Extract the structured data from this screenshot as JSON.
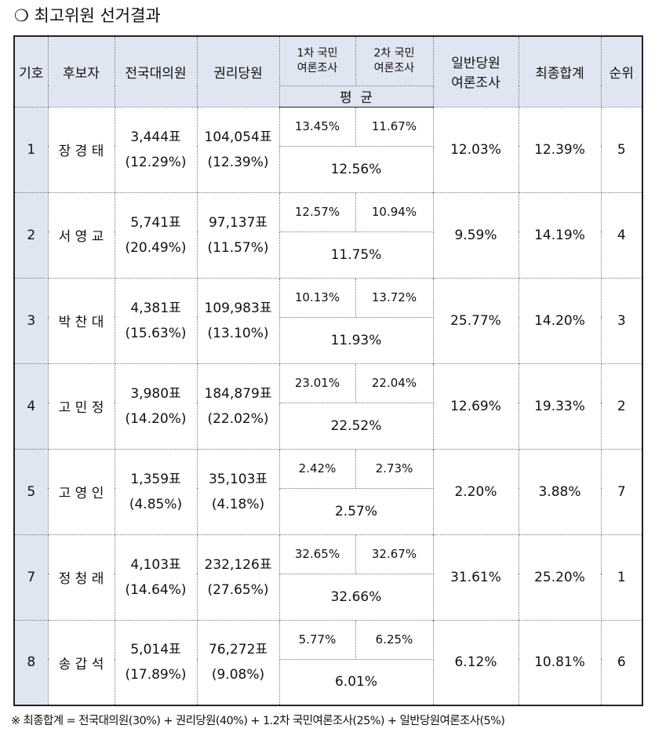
{
  "title": "❍ 최고위원 선거결과",
  "header": {
    "number": "기호",
    "name": "후보자",
    "delegate": "전국대의원",
    "member": "권리당원",
    "poll1_line1": "1차 국민",
    "poll1_line2": "여론조사",
    "poll2_line1": "2차 국민",
    "poll2_line2": "여론조사",
    "poll_avg": "평  균",
    "general_line1": "일반당원",
    "general_line2": "여론조사",
    "final": "최종합계",
    "rank": "순위"
  },
  "rows": [
    {
      "number": "1",
      "name": "장 경 태",
      "delegate_votes": "3,444표",
      "delegate_pct": "(12.29%)",
      "member_votes": "104,054표",
      "member_pct": "(12.39%)",
      "poll1": "13.45%",
      "poll2": "11.67%",
      "poll_avg": "12.56%",
      "general": "12.03%",
      "final": "12.39%",
      "rank": "5"
    },
    {
      "number": "2",
      "name": "서 영 교",
      "delegate_votes": "5,741표",
      "delegate_pct": "(20.49%)",
      "member_votes": "97,137표",
      "member_pct": "(11.57%)",
      "poll1": "12.57%",
      "poll2": "10.94%",
      "poll_avg": "11.75%",
      "general": "9.59%",
      "final": "14.19%",
      "rank": "4"
    },
    {
      "number": "3",
      "name": "박 찬 대",
      "delegate_votes": "4,381표",
      "delegate_pct": "(15.63%)",
      "member_votes": "109,983표",
      "member_pct": "(13.10%)",
      "poll1": "10.13%",
      "poll2": "13.72%",
      "poll_avg": "11.93%",
      "general": "25.77%",
      "final": "14.20%",
      "rank": "3"
    },
    {
      "number": "4",
      "name": "고 민 정",
      "delegate_votes": "3,980표",
      "delegate_pct": "(14.20%)",
      "member_votes": "184,879표",
      "member_pct": "(22.02%)",
      "poll1": "23.01%",
      "poll2": "22.04%",
      "poll_avg": "22.52%",
      "general": "12.69%",
      "final": "19.33%",
      "rank": "2"
    },
    {
      "number": "5",
      "name": "고 영 인",
      "delegate_votes": "1,359표",
      "delegate_pct": "(4.85%)",
      "member_votes": "35,103표",
      "member_pct": "(4.18%)",
      "poll1": "2.42%",
      "poll2": "2.73%",
      "poll_avg": "2.57%",
      "general": "2.20%",
      "final": "3.88%",
      "rank": "7"
    },
    {
      "number": "7",
      "name": "정 청 래",
      "delegate_votes": "4,103표",
      "delegate_pct": "(14.64%)",
      "member_votes": "232,126표",
      "member_pct": "(27.65%)",
      "poll1": "32.65%",
      "poll2": "32.67%",
      "poll_avg": "32.66%",
      "general": "31.61%",
      "final": "25.20%",
      "rank": "1"
    },
    {
      "number": "8",
      "name": "송 갑 석",
      "delegate_votes": "5,014표",
      "delegate_pct": "(17.89%)",
      "member_votes": "76,272표",
      "member_pct": "(9.08%)",
      "poll1": "5.77%",
      "poll2": "6.25%",
      "poll_avg": "6.01%",
      "general": "6.12%",
      "final": "10.81%",
      "rank": "6"
    }
  ],
  "footnote": "※ 최종합계 = 전국대의원(30%) + 권리당원(40%) + 1.2차 국민여론조사(25%) + 일반당원여론조사(5%)"
}
